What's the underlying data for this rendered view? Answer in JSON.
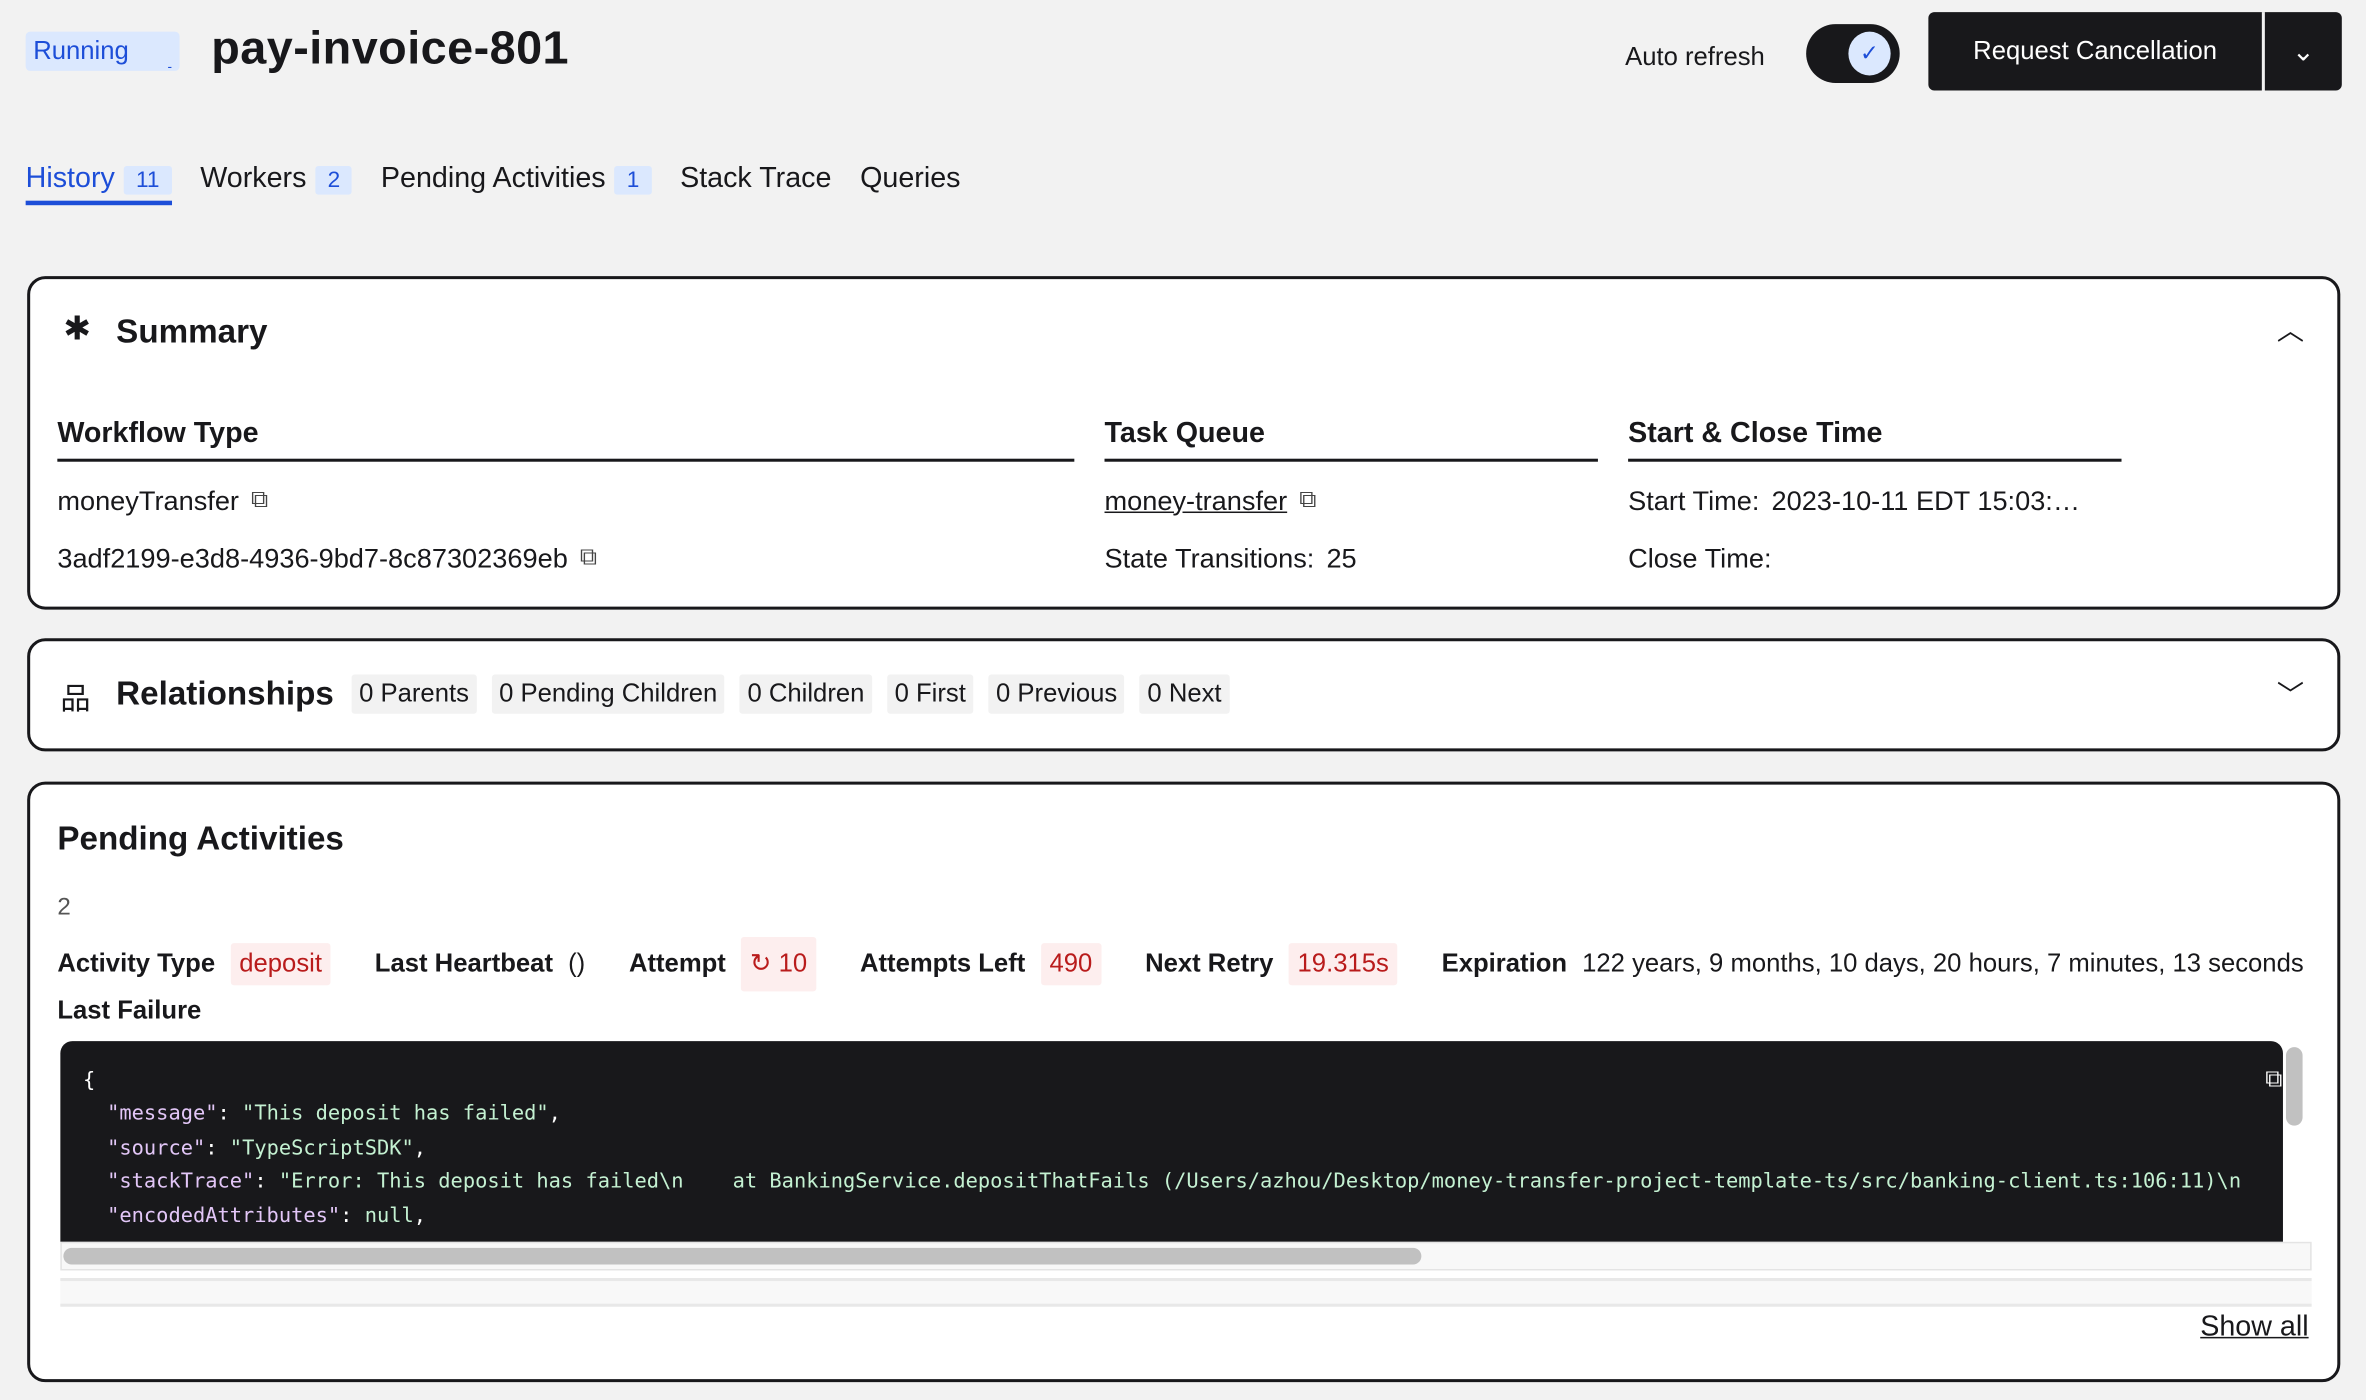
{
  "header": {
    "status": "Running",
    "title": "pay-invoice-801",
    "auto_refresh_label": "Auto refresh",
    "auto_refresh_on": true,
    "request_cancellation": "Request Cancellation"
  },
  "tabs": [
    {
      "label": "History",
      "count": "11"
    },
    {
      "label": "Workers",
      "count": "2"
    },
    {
      "label": "Pending Activities",
      "count": "1"
    },
    {
      "label": "Stack Trace"
    },
    {
      "label": "Queries"
    }
  ],
  "summary": {
    "title": "Summary",
    "workflow_type": {
      "header": "Workflow Type",
      "type": "moneyTransfer",
      "run_id": "3adf2199-e3d8-4936-9bd7-8c87302369eb"
    },
    "task_queue": {
      "header": "Task Queue",
      "queue": "money-transfer",
      "state_transitions_label": "State Transitions:",
      "state_transitions": "25"
    },
    "times": {
      "header": "Start & Close Time",
      "start_label": "Start Time:",
      "start": "2023-10-11 EDT 15:03:…",
      "close_label": "Close Time:"
    }
  },
  "relationships": {
    "title": "Relationships",
    "chips": [
      "0 Parents",
      "0 Pending Children",
      "0 Children",
      "0 First",
      "0 Previous",
      "0 Next"
    ]
  },
  "pending": {
    "title": "Pending Activities",
    "id": "2",
    "activity_type_label": "Activity Type",
    "activity_type": "deposit",
    "last_heartbeat_label": "Last Heartbeat",
    "last_heartbeat": "()",
    "attempt_label": "Attempt",
    "attempt": "10",
    "attempts_left_label": "Attempts Left",
    "attempts_left": "490",
    "next_retry_label": "Next Retry",
    "next_retry": "19.315s",
    "expiration_label": "Expiration",
    "expiration": "122 years, 9 months, 10 days, 20 hours, 7 minutes, 13 seconds",
    "last_failure_label": "Last Failure",
    "code": {
      "open": "{",
      "lines": [
        {
          "key": "\"message\"",
          "value": "\"This deposit has failed\"",
          "end": ","
        },
        {
          "key": "\"source\"",
          "value": "\"TypeScriptSDK\"",
          "end": ","
        },
        {
          "key": "\"stackTrace\"",
          "value": "\"Error: This deposit has failed\\n    at BankingService.depositThatFails (/Users/azhou/Desktop/money-transfer-project-template-ts/src/banking-client.ts:106:11)\\n",
          "end": ""
        },
        {
          "key": "\"encodedAttributes\"",
          "value": "null",
          "end": ","
        }
      ]
    },
    "show_all": "Show all"
  }
}
